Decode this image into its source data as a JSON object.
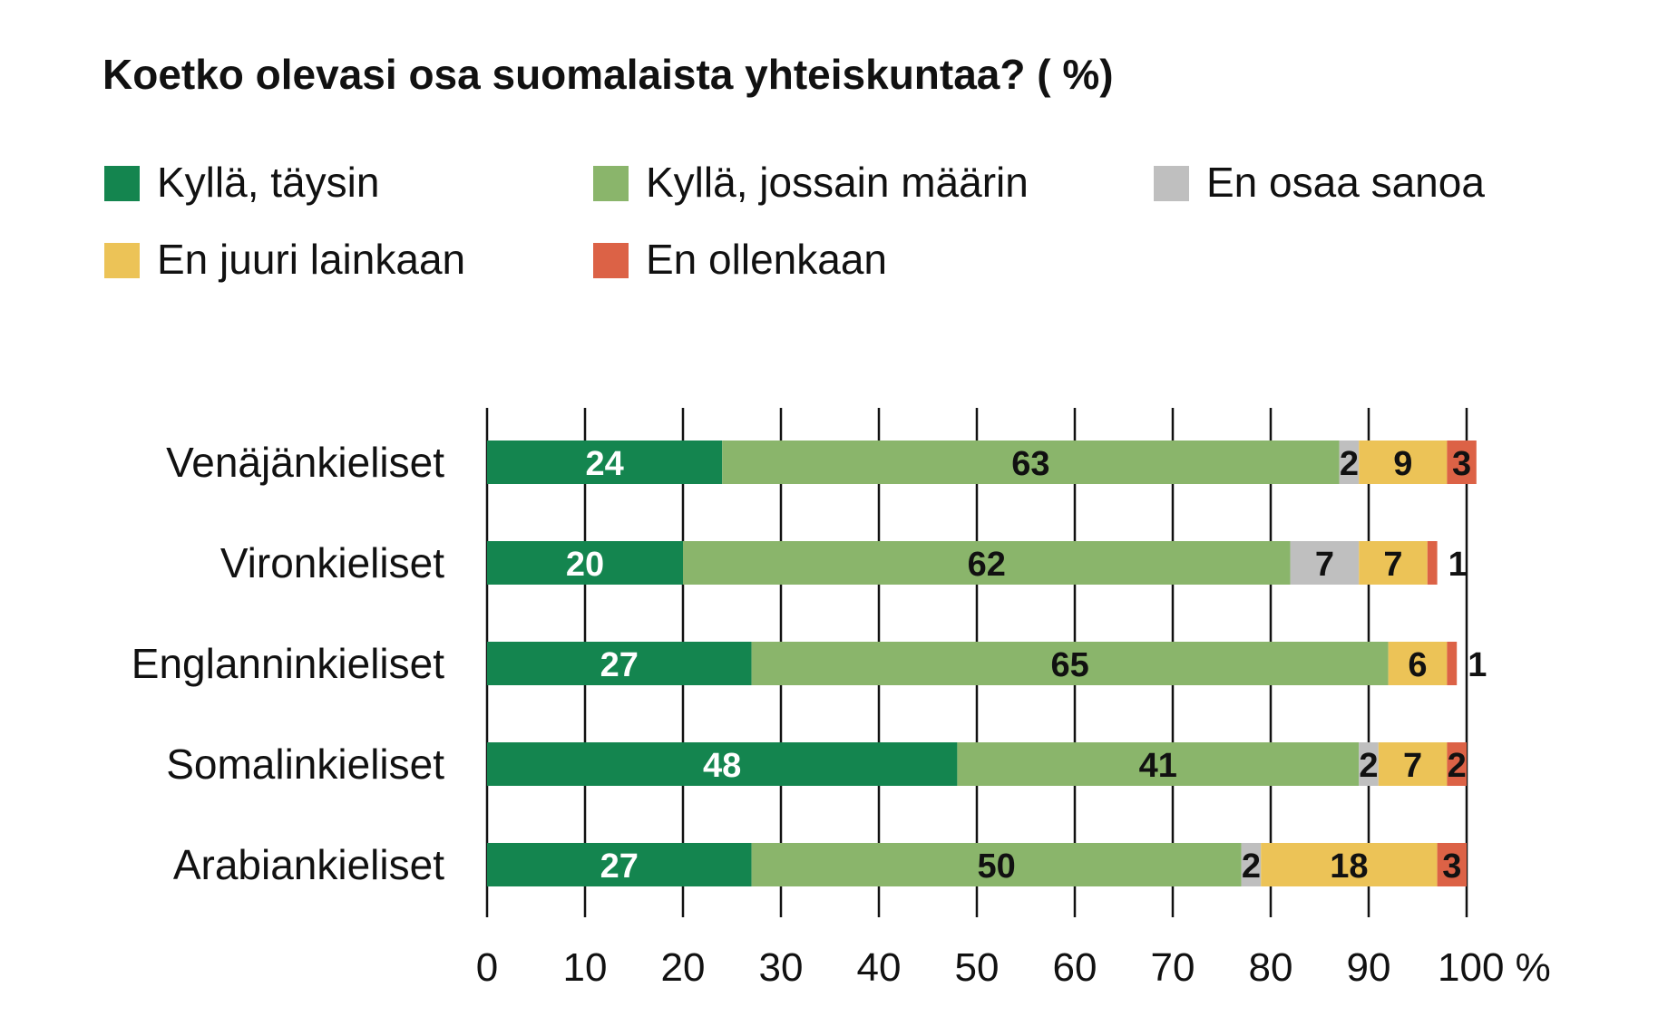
{
  "chart_data": {
    "type": "bar",
    "orientation": "horizontal",
    "stacked": true,
    "title": "Koetko olevasi osa suomalaista yhteiskuntaa? ( %)",
    "categories": [
      "Venäjänkieliset",
      "Vironkieliset",
      "Englanninkieliset",
      "Somalinkieliset",
      "Arabiankieliset"
    ],
    "series": [
      {
        "name": "Kyllä, täysin",
        "color": "#14854f",
        "label_color": "#ffffff",
        "values": [
          24,
          20,
          27,
          48,
          27
        ]
      },
      {
        "name": "Kyllä, jossain määrin",
        "color": "#8ab56b",
        "label_color": "#111111",
        "values": [
          63,
          62,
          65,
          41,
          50
        ]
      },
      {
        "name": "En osaa sanoa",
        "color": "#bfbfbf",
        "label_color": "#111111",
        "values": [
          2,
          7,
          0,
          2,
          2
        ]
      },
      {
        "name": "En juuri lainkaan",
        "color": "#ecc357",
        "label_color": "#111111",
        "values": [
          9,
          7,
          6,
          7,
          18
        ]
      },
      {
        "name": "En ollenkaan",
        "color": "#dc6246",
        "label_color": "#111111",
        "values": [
          3,
          1,
          1,
          2,
          3
        ]
      }
    ],
    "xlim": [
      0,
      100
    ],
    "xticks": [
      "0",
      "10",
      "20",
      "30",
      "40",
      "50",
      "60",
      "70",
      "80",
      "90",
      "100 %"
    ],
    "grid": "vertical",
    "legend_position": "top"
  }
}
